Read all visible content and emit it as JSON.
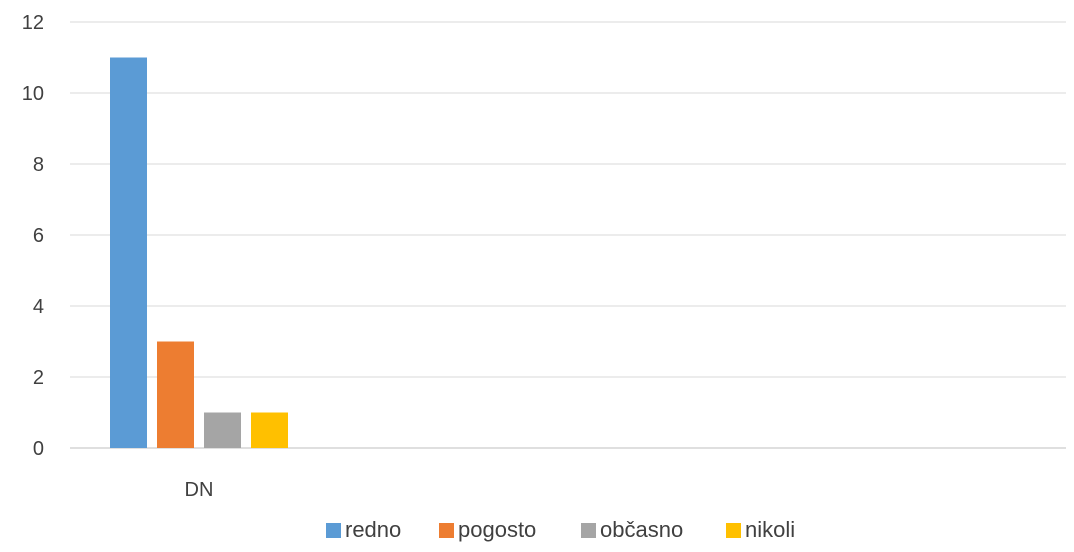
{
  "chart_data": {
    "type": "bar",
    "categories": [
      "DN"
    ],
    "series": [
      {
        "name": "redno",
        "values": [
          11
        ],
        "color": "#5B9BD5"
      },
      {
        "name": "pogosto",
        "values": [
          3
        ],
        "color": "#ED7D31"
      },
      {
        "name": "občasno",
        "values": [
          1
        ],
        "color": "#A5A5A5"
      },
      {
        "name": "nikoli",
        "values": [
          1
        ],
        "color": "#FFC000"
      }
    ],
    "yticks": [
      "0",
      "2",
      "4",
      "6",
      "8",
      "10",
      "12"
    ],
    "ylim": [
      0,
      12
    ],
    "grid": true,
    "legend": "bottom-center",
    "title": "",
    "xlabel": "",
    "ylabel": ""
  }
}
